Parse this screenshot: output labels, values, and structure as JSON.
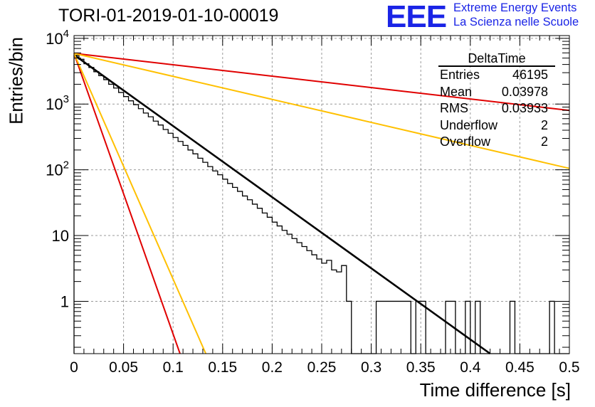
{
  "title": "TORI-01-2019-01-10-00019",
  "logo": {
    "mark": "EEE",
    "line1": "Extreme Energy Events",
    "line2": "La Scienza nelle Scuole"
  },
  "stats_box": {
    "title": "DeltaTime",
    "rows": [
      {
        "label": "Entries",
        "value": "46195"
      },
      {
        "label": "Mean",
        "value": "0.03978"
      },
      {
        "label": "RMS",
        "value": "0.03933"
      },
      {
        "label": "Underflow",
        "value": "2"
      },
      {
        "label": "Overflow",
        "value": "2"
      }
    ]
  },
  "colors": {
    "histogram": "#000000",
    "fit": "#000000",
    "red_lines": "#e00000",
    "orange_lines": "#ffc000",
    "grid": "#999999"
  },
  "chart_data": {
    "type": "line",
    "xlabel": "Time difference [s]",
    "ylabel": "Entries/bin",
    "xlim": [
      0,
      0.5
    ],
    "ylim": [
      0.16,
      11000
    ],
    "yscale": "log",
    "grid": true,
    "x_ticks": [
      "0",
      "0.05",
      "0.1",
      "0.15",
      "0.2",
      "0.25",
      "0.3",
      "0.35",
      "0.4",
      "0.45",
      "0.5"
    ],
    "y_ticks": [
      {
        "value": 1,
        "label": "1"
      },
      {
        "value": 10,
        "label": "10"
      },
      {
        "value": 100,
        "label": "10^2"
      },
      {
        "value": 1000,
        "label": "10^3"
      },
      {
        "value": 10000,
        "label": "10^4"
      }
    ],
    "histogram": {
      "bin_width": 0.005,
      "counts": [
        5500,
        4800,
        4100,
        3600,
        3100,
        2700,
        2350,
        2000,
        1750,
        1500,
        1300,
        1120,
        980,
        850,
        730,
        640,
        550,
        480,
        410,
        360,
        310,
        270,
        235,
        200,
        175,
        150,
        130,
        112,
        96,
        84,
        72,
        62,
        54,
        47,
        40,
        35,
        30,
        26,
        22,
        19,
        16,
        14,
        12,
        10.5,
        9,
        7.8,
        6.8,
        5.9,
        5.1,
        4.4,
        3.8,
        4.2,
        3.0,
        2.8,
        3.5,
        1.0,
        0,
        0,
        0,
        0,
        0,
        1,
        1,
        1,
        1,
        1,
        1,
        1,
        0,
        1,
        1,
        0,
        0,
        0,
        0,
        1,
        1,
        0,
        0,
        1,
        0,
        1,
        0,
        0,
        0,
        0,
        0,
        0,
        1,
        0,
        0,
        0,
        0,
        0,
        0,
        0,
        1,
        0,
        0,
        0
      ],
      "color": "#000000"
    },
    "series": [
      {
        "label": "fit",
        "color": "#000000",
        "x": [
          0,
          0.42
        ],
        "y": [
          5600,
          0.16
        ]
      },
      {
        "label": "upper-red",
        "color": "#e00000",
        "x": [
          0,
          0.5
        ],
        "y": [
          5900,
          800
        ]
      },
      {
        "label": "upper-orange",
        "color": "#ffc000",
        "x": [
          0,
          0.5
        ],
        "y": [
          5900,
          105
        ]
      },
      {
        "label": "lower-red",
        "color": "#e00000",
        "x": [
          0,
          0.107
        ],
        "y": [
          5900,
          0.16
        ]
      },
      {
        "label": "lower-orange",
        "color": "#ffc000",
        "x": [
          0,
          0.133
        ],
        "y": [
          5900,
          0.16
        ]
      }
    ]
  }
}
